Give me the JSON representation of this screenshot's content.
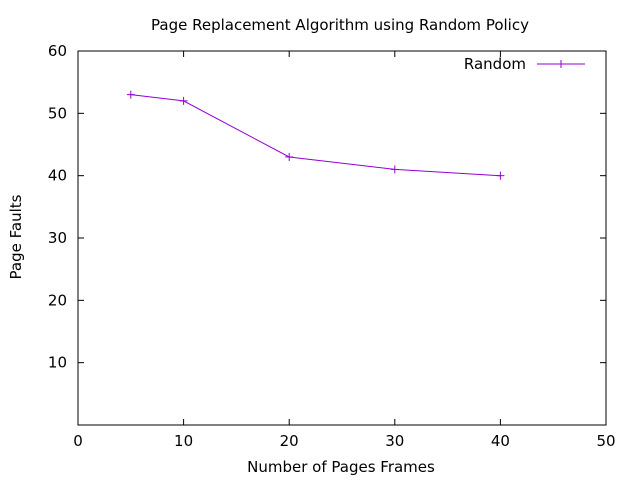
{
  "chart_data": {
    "type": "line",
    "title": "Page Replacement Algorithm using Random Policy",
    "xlabel": "Number of Pages Frames",
    "ylabel": "Page Faults",
    "xlim": [
      0,
      50
    ],
    "ylim": [
      0,
      60
    ],
    "xticks": [
      0,
      10,
      20,
      30,
      40,
      50
    ],
    "yticks": [
      10,
      20,
      30,
      40,
      50,
      60
    ],
    "xtick_labels": [
      "0",
      "10",
      "20",
      "30",
      "40",
      "50"
    ],
    "ytick_labels": [
      "10",
      "20",
      "30",
      "40",
      "50",
      "60"
    ],
    "grid": false,
    "legend_position": "top-right",
    "series": [
      {
        "name": "Random",
        "color": "#9400d3",
        "marker": "plus",
        "x": [
          5,
          10,
          20,
          30,
          40
        ],
        "y": [
          53,
          52,
          43,
          41,
          40
        ]
      }
    ]
  }
}
